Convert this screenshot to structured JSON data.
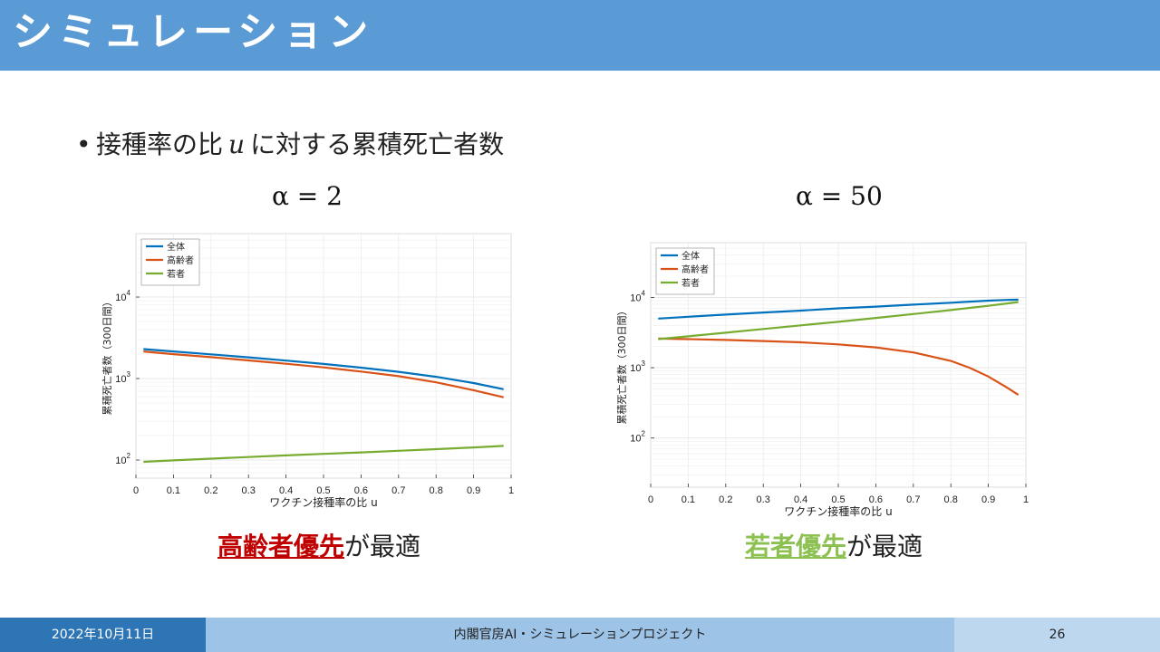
{
  "header": {
    "title": "シミュレーション"
  },
  "bullet": {
    "prefix": "接種率の比",
    "variable": "u",
    "suffix": "に対する累積死亡者数"
  },
  "left": {
    "alpha_label": "α = 2",
    "caption_highlight": "高齢者優先",
    "caption_suffix": "が最適",
    "highlight_color": "#c00000"
  },
  "right": {
    "alpha_label": "α = 50",
    "caption_highlight": "若者優先",
    "caption_suffix": "が最適",
    "highlight_color": "#8cc152"
  },
  "footer": {
    "date": "2022年10月11日",
    "org": "内閣官房AI・シミュレーションプロジェクト",
    "page": "26"
  },
  "chart_data": [
    {
      "type": "line",
      "xlabel": "ワクチン接種率の比 u",
      "ylabel": "累積死亡者数（300日間）",
      "xlim": [
        0,
        1
      ],
      "ylim": [
        60,
        60000
      ],
      "yscale": "log",
      "xticks": [
        "0",
        "0.1",
        "0.2",
        "0.3",
        "0.4",
        "0.5",
        "0.6",
        "0.7",
        "0.8",
        "0.9",
        "1"
      ],
      "yticks": [
        {
          "base": "10",
          "exp": "2"
        },
        {
          "base": "10",
          "exp": "3"
        },
        {
          "base": "10",
          "exp": "4"
        }
      ],
      "grid": true,
      "legend_position": "top-left",
      "x": [
        0.02,
        0.1,
        0.2,
        0.3,
        0.4,
        0.5,
        0.6,
        0.7,
        0.8,
        0.9,
        0.98
      ],
      "series": [
        {
          "name": "全体",
          "color": "#0072bd",
          "values": [
            2300,
            2150,
            1980,
            1820,
            1660,
            1510,
            1360,
            1210,
            1050,
            880,
            740
          ]
        },
        {
          "name": "高齢者",
          "color": "#d95319",
          "values": [
            2150,
            1990,
            1830,
            1670,
            1520,
            1370,
            1220,
            1070,
            900,
            720,
            590
          ]
        },
        {
          "name": "若者",
          "color": "#77ac30",
          "values": [
            95,
            99,
            104,
            109,
            114,
            119,
            124,
            130,
            136,
            143,
            149
          ]
        }
      ]
    },
    {
      "type": "line",
      "xlabel": "ワクチン接種率の比 u",
      "ylabel": "累積死亡者数（300日間）",
      "xlim": [
        0,
        1
      ],
      "ylim": [
        20,
        60000
      ],
      "yscale": "log",
      "xticks": [
        "0",
        "0.1",
        "0.2",
        "0.3",
        "0.4",
        "0.5",
        "0.6",
        "0.7",
        "0.8",
        "0.9",
        "1"
      ],
      "yticks": [
        {
          "base": "10",
          "exp": "2"
        },
        {
          "base": "10",
          "exp": "3"
        },
        {
          "base": "10",
          "exp": "4"
        }
      ],
      "grid": true,
      "legend_position": "top-left",
      "x": [
        0.02,
        0.1,
        0.2,
        0.3,
        0.4,
        0.5,
        0.6,
        0.7,
        0.8,
        0.85,
        0.9,
        0.95,
        0.98
      ],
      "series": [
        {
          "name": "全体",
          "color": "#0072bd",
          "values": [
            5000,
            5300,
            5700,
            6100,
            6500,
            7000,
            7400,
            7900,
            8400,
            8700,
            9000,
            9200,
            9300
          ]
        },
        {
          "name": "高齢者",
          "color": "#d95319",
          "values": [
            2600,
            2550,
            2480,
            2400,
            2300,
            2150,
            1950,
            1650,
            1250,
            1000,
            750,
            520,
            410
          ]
        },
        {
          "name": "若者",
          "color": "#77ac30",
          "values": [
            2550,
            2800,
            3150,
            3550,
            4000,
            4500,
            5100,
            5800,
            6600,
            7100,
            7600,
            8200,
            8600
          ]
        }
      ]
    }
  ]
}
